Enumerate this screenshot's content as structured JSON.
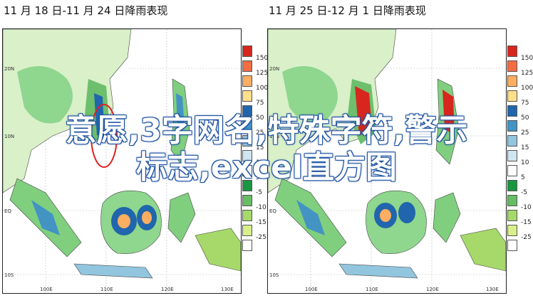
{
  "panels": [
    {
      "title": "11 月 18 日-11 月 24 日降雨表现"
    },
    {
      "title": "11 月 25 日-12 月 1 日降雨表现"
    }
  ],
  "axis": {
    "lat_labels": [
      "20N",
      "10N",
      "EQ",
      "10S"
    ],
    "lon_labels": [
      "100E",
      "110E",
      "120E",
      "130E"
    ]
  },
  "legend": {
    "levels": [
      "150",
      "125",
      "100",
      "75",
      "50",
      "25",
      "15",
      "10",
      "5",
      "-5",
      "-10",
      "-15",
      "-25"
    ],
    "colors": [
      "#d7261e",
      "#f46d43",
      "#fdae61",
      "#fee08b",
      "#2166ac",
      "#4393c3",
      "#92c5de",
      "#d1e5f0",
      "#ffffff",
      "#1a9641",
      "#66bd63",
      "#a6d96a",
      "#d9ef8b",
      "#ffffff"
    ]
  },
  "overlay": {
    "line1": "意愿,3字网名,特殊字符,警示",
    "line2": "标志,excel直方图"
  },
  "colors": {
    "land_wet": "#7fcf7f",
    "land_dry": "#d9f0c8",
    "ocean": "#ffffff",
    "highlight": "#e02020"
  }
}
